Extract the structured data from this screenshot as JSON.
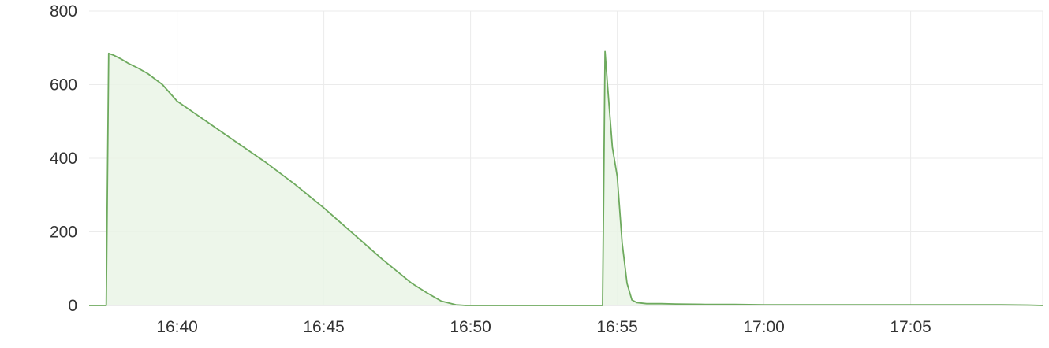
{
  "chart_data": {
    "type": "area",
    "title": "",
    "xlabel": "",
    "ylabel": "",
    "ylim": [
      0,
      800
    ],
    "xlim": [
      "16:37:00",
      "17:09:30"
    ],
    "grid": true,
    "legend": "none",
    "colors": {
      "line": "#6eaa5e",
      "fill": "#eaf4e6",
      "grid": "#ebebeb",
      "text": "#333333"
    },
    "y_ticks": [
      0,
      200,
      400,
      600,
      800
    ],
    "x_ticks": [
      "16:40",
      "16:45",
      "16:50",
      "16:55",
      "17:00",
      "17:05"
    ],
    "series": [
      {
        "x": [
          "16:37:00",
          "16:37:35",
          "16:37:40",
          "16:37:50",
          "16:38:05",
          "16:38:20",
          "16:38:40",
          "16:39:00",
          "16:39:30",
          "16:40:00",
          "16:41:00",
          "16:42:00",
          "16:43:00",
          "16:44:00",
          "16:45:00",
          "16:46:00",
          "16:47:00",
          "16:48:00",
          "16:48:30",
          "16:49:00",
          "16:49:30",
          "16:49:50",
          "16:50:30",
          "16:51:00",
          "16:52:00",
          "16:53:00",
          "16:54:00",
          "16:54:30",
          "16:54:35",
          "16:54:40",
          "16:54:50",
          "16:55:00",
          "16:55:10",
          "16:55:20",
          "16:55:30",
          "16:55:40",
          "16:56:00",
          "16:56:30",
          "16:57:00",
          "16:58:00",
          "16:59:00",
          "17:00:00",
          "17:01:00",
          "17:02:00",
          "17:03:00",
          "17:04:00",
          "17:05:00",
          "17:06:00",
          "17:07:00",
          "17:08:00",
          "17:09:00",
          "17:09:30"
        ],
        "y": [
          0,
          0,
          685,
          680,
          670,
          658,
          645,
          630,
          600,
          555,
          500,
          445,
          390,
          330,
          265,
          195,
          125,
          60,
          35,
          12,
          2,
          0,
          0,
          0,
          0,
          0,
          0,
          0,
          690,
          600,
          430,
          350,
          170,
          60,
          15,
          8,
          5,
          5,
          4,
          3,
          3,
          2,
          2,
          2,
          2,
          2,
          2,
          2,
          2,
          2,
          1,
          0
        ]
      }
    ]
  }
}
